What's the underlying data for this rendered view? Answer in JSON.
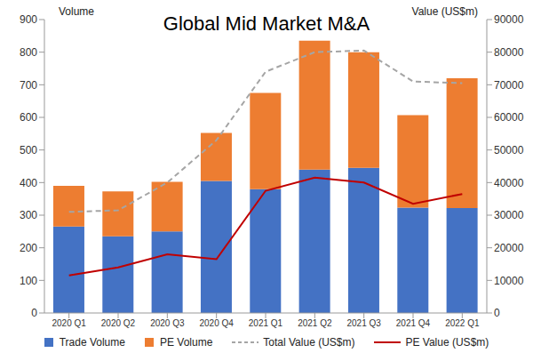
{
  "chart_data": {
    "type": "bar",
    "title": "Global Mid Market M&A",
    "y_label": "Volume",
    "y2_label": "Value (US$m)",
    "categories": [
      "2020 Q1",
      "2020 Q2",
      "2020 Q3",
      "2020 Q4",
      "2021 Q1",
      "2021 Q2",
      "2021 Q3",
      "2021 Q4",
      "2022 Q1"
    ],
    "series": [
      {
        "name": "Trade Volume",
        "type": "bar",
        "color": "#4472c4",
        "values": [
          265,
          235,
          250,
          405,
          380,
          440,
          445,
          323,
          322
        ]
      },
      {
        "name": "PE Volume",
        "type": "bar",
        "color": "#ed7d31",
        "values": [
          125,
          138,
          152,
          147,
          295,
          395,
          355,
          284,
          398
        ]
      },
      {
        "name": "Total Value (US$m)",
        "type": "line",
        "axis": "y2",
        "line_style": "dashed",
        "color": "#a5a5a5",
        "values": [
          31000,
          31500,
          40000,
          53000,
          74000,
          80000,
          80500,
          71000,
          70500
        ]
      },
      {
        "name": "PE Value (US$m)",
        "type": "line",
        "axis": "y2",
        "line_style": "solid",
        "color": "#c00000",
        "values": [
          11500,
          14000,
          18000,
          16500,
          37500,
          41500,
          40000,
          33500,
          36500
        ]
      }
    ],
    "stacked": true,
    "ylim": [
      0,
      900
    ],
    "yticks": [
      0,
      100,
      200,
      300,
      400,
      500,
      600,
      700,
      800,
      900
    ],
    "y2lim": [
      0,
      90000
    ],
    "y2ticks": [
      0,
      10000,
      20000,
      30000,
      40000,
      50000,
      60000,
      70000,
      80000,
      90000
    ],
    "grid": false,
    "legend": "bottom"
  }
}
